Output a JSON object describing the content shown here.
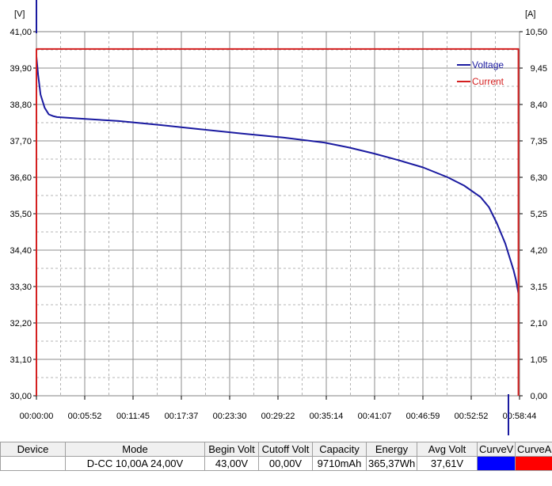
{
  "chart_data": {
    "type": "line",
    "left_unit": "[V]",
    "right_unit": "[A]",
    "y_left_ticks": [
      "41,00",
      "39,90",
      "38,80",
      "37,70",
      "36,60",
      "35,50",
      "34,40",
      "33,30",
      "32,20",
      "31,10",
      "30,00"
    ],
    "y_right_ticks": [
      "10,50",
      "9,45",
      "8,40",
      "7,35",
      "6,30",
      "5,25",
      "4,20",
      "3,15",
      "2,10",
      "1,05",
      "0,00"
    ],
    "x_ticks": [
      "00:00:00",
      "00:05:52",
      "00:11:45",
      "00:17:37",
      "00:23:30",
      "00:29:22",
      "00:35:14",
      "00:41:07",
      "00:46:59",
      "00:52:52",
      "00:58:44"
    ],
    "y_left_range": [
      30.0,
      41.0
    ],
    "y_right_range": [
      0.0,
      10.5
    ],
    "x_range_minutes": [
      0,
      58.73
    ],
    "grid": true,
    "legend_position": "top-right",
    "series": [
      {
        "name": "Voltage",
        "axis": "left",
        "color": "#1a1aa0",
        "x": [
          0.0,
          0.2,
          0.5,
          1.0,
          1.5,
          2.0,
          2.5,
          5.0,
          10.0,
          15.0,
          20.0,
          25.0,
          30.0,
          35.0,
          38.0,
          41.0,
          44.0,
          47.0,
          50.0,
          52.0,
          54.0,
          55.0,
          56.0,
          57.0,
          57.5,
          58.0,
          58.3,
          58.6
        ],
        "y": [
          40.25,
          39.7,
          39.1,
          38.7,
          38.5,
          38.45,
          38.42,
          38.38,
          38.3,
          38.18,
          38.05,
          37.92,
          37.8,
          37.65,
          37.5,
          37.32,
          37.12,
          36.9,
          36.6,
          36.35,
          36.0,
          35.7,
          35.2,
          34.6,
          34.2,
          33.8,
          33.5,
          33.1
        ]
      },
      {
        "name": "Current",
        "axis": "right",
        "color": "#d42020",
        "x": [
          0.0,
          0.0,
          0.2,
          58.6,
          58.6
        ],
        "y": [
          0.0,
          10.0,
          10.0,
          10.0,
          0.0
        ]
      }
    ]
  },
  "table": {
    "headers": [
      "Device",
      "Mode",
      "Begin Volt",
      "Cutoff Volt",
      "Capacity",
      "Energy",
      "Avg Volt",
      "CurveV",
      "CurveA"
    ],
    "row": {
      "device": "",
      "mode": "D-CC  10,00A  24,00V",
      "begin_volt": "43,00V",
      "cutoff_volt": "00,00V",
      "capacity": "9710mAh",
      "energy": "365,37Wh",
      "avg_volt": "37,61V",
      "curve_v_color": "#0000ff",
      "curve_a_color": "#ff0000"
    }
  }
}
